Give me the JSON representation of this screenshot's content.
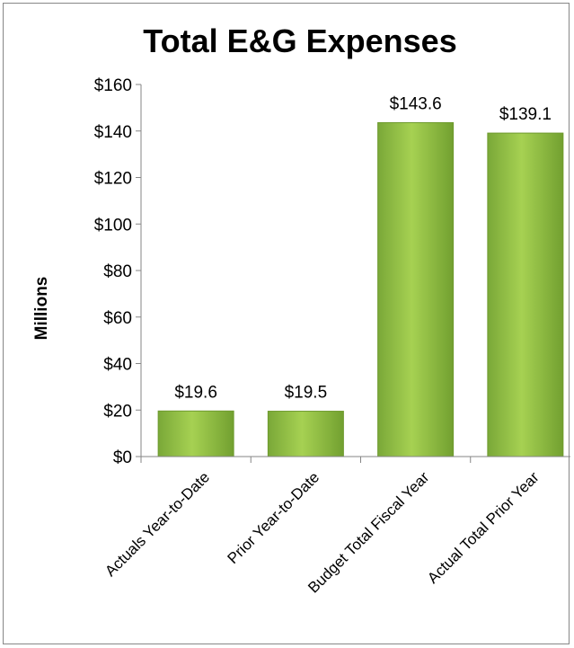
{
  "chart_data": {
    "type": "bar",
    "title": "Total E&G Expenses",
    "ylabel": "Millions",
    "xlabel": "",
    "categories": [
      "Actuals Year-to-Date",
      "Prior Year-to-Date",
      "Budget Total Fiscal Year",
      "Actual Total Prior Year"
    ],
    "values": [
      19.6,
      19.5,
      143.6,
      139.1
    ],
    "data_labels": [
      "$19.6",
      "$19.5",
      "$143.6",
      "$139.1"
    ],
    "ylim": [
      0,
      160
    ],
    "yticks": [
      0,
      20,
      40,
      60,
      80,
      100,
      120,
      140,
      160
    ],
    "ytick_labels": [
      "$0",
      "$20",
      "$40",
      "$60",
      "$80",
      "$100",
      "$120",
      "$140",
      "$160"
    ],
    "grid": false,
    "legend": "none",
    "bar_color": "#8dc03f"
  }
}
